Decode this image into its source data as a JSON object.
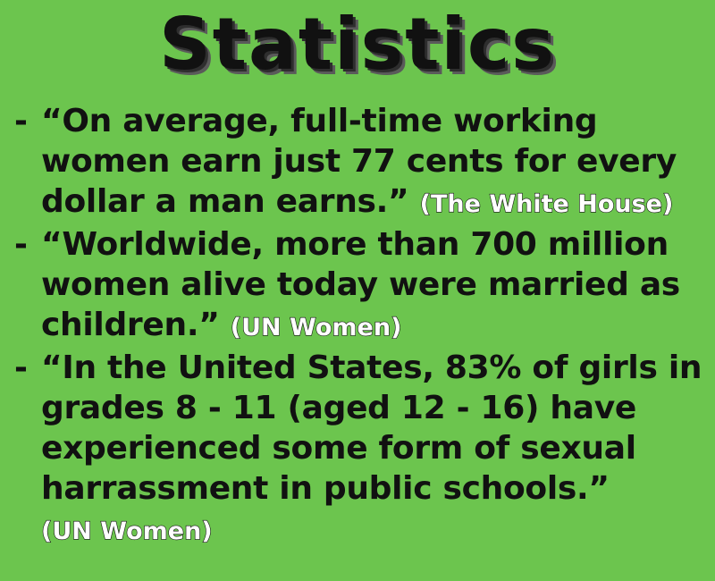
{
  "title": "Statistics",
  "items": [
    {
      "bullet": "-",
      "quote": "“On average, full-time working women earn just 77 cents for every dollar a man earns.”",
      "source": "(The White House)"
    },
    {
      "bullet": "-",
      "quote": "“Worldwide, more than 700 million women alive today were married as children.”",
      "source": "(UN Women)"
    },
    {
      "bullet": "-",
      "quote": "“In the United States, 83% of girls in grades 8 - 11 (aged 12 - 16) have experienced some form of sexual harrassment in public schools.”",
      "source": "(UN Women)"
    }
  ],
  "colors": {
    "background": "#6cc54e",
    "text": "#111111",
    "source_text": "#ffffff"
  }
}
